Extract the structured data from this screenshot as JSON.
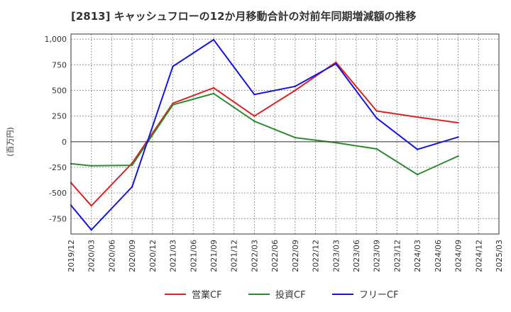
{
  "chart_data": {
    "type": "line",
    "title": "[2813]  キャッシュフローの12か月移動合計の対前年同期増減額の推移",
    "ylabel": "(百万円)",
    "xlabel": "",
    "ylim": [
      -900,
      1050
    ],
    "yticks": [
      1000,
      750,
      500,
      250,
      0,
      -250,
      -500,
      -750
    ],
    "ytick_labels": [
      "1,000",
      "750",
      "500",
      "250",
      "0",
      "-250",
      "-500",
      "-750"
    ],
    "categories": [
      "2019/12",
      "2020/03",
      "2020/06",
      "2020/09",
      "2020/12",
      "2021/03",
      "2021/06",
      "2021/09",
      "2021/12",
      "2022/03",
      "2022/06",
      "2022/09",
      "2022/12",
      "2023/03",
      "2023/06",
      "2023/09",
      "2023/12",
      "2024/03",
      "2024/06",
      "2024/09",
      "2024/12",
      "2025/03"
    ],
    "grid": true,
    "legend_position": "bottom-center",
    "series": [
      {
        "name": "営業CF",
        "color": "#dd2222",
        "values": [
          -400,
          -625,
          null,
          -210,
          null,
          375,
          null,
          525,
          null,
          250,
          null,
          500,
          null,
          775,
          null,
          300,
          null,
          240,
          null,
          185,
          null,
          null
        ]
      },
      {
        "name": "投資CF",
        "color": "#2e8b2e",
        "values": [
          -215,
          -235,
          null,
          -230,
          null,
          360,
          null,
          470,
          null,
          200,
          null,
          40,
          null,
          -10,
          null,
          -70,
          null,
          -320,
          null,
          -140,
          null,
          null
        ]
      },
      {
        "name": "フリーCF",
        "color": "#1515dd",
        "values": [
          -620,
          -860,
          null,
          -440,
          null,
          735,
          null,
          995,
          null,
          460,
          null,
          540,
          null,
          760,
          null,
          230,
          null,
          -75,
          null,
          45,
          null,
          null
        ]
      }
    ]
  }
}
